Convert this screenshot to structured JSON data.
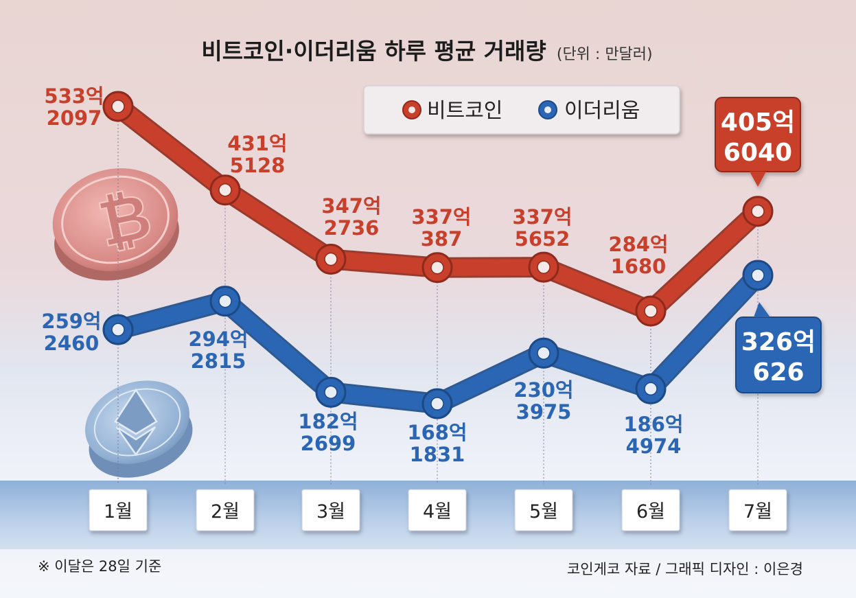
{
  "chart_data": {
    "type": "line",
    "title": "비트코인·이더리움 하루 평균 거래량",
    "unit_note": "(단위 : 만달러)",
    "categories": [
      "1월",
      "2월",
      "3월",
      "4월",
      "5월",
      "6월",
      "7월"
    ],
    "series": [
      {
        "name": "비트코인",
        "color": "#c8402c",
        "values": [
          5332097,
          4315128,
          3472736,
          3370387,
          3375652,
          2841680,
          4056040
        ],
        "label_top": [
          "533억",
          "431억",
          "347억",
          "337억",
          "337억",
          "284억",
          "405억"
        ],
        "label_bottom": [
          "2097",
          "5128",
          "2736",
          "387",
          "5652",
          "1680",
          "6040"
        ]
      },
      {
        "name": "이더리움",
        "color": "#2a66b3",
        "values": [
          2592460,
          2942815,
          1822699,
          1681831,
          2303975,
          1864974,
          3260626
        ],
        "label_top": [
          "259억",
          "294억",
          "182억",
          "168억",
          "230억",
          "186억",
          "326억"
        ],
        "label_bottom": [
          "2460",
          "2815",
          "2699",
          "1831",
          "3975",
          "4974",
          "626"
        ]
      }
    ],
    "legend_position": "top-right",
    "highlight_last": true,
    "footnote": "※ 이달은 28일 기준",
    "source": "코인게코 자료 / 그래픽 디자인 : 이은경"
  },
  "icons": [
    "bitcoin-coin-icon",
    "ethereum-coin-icon"
  ]
}
